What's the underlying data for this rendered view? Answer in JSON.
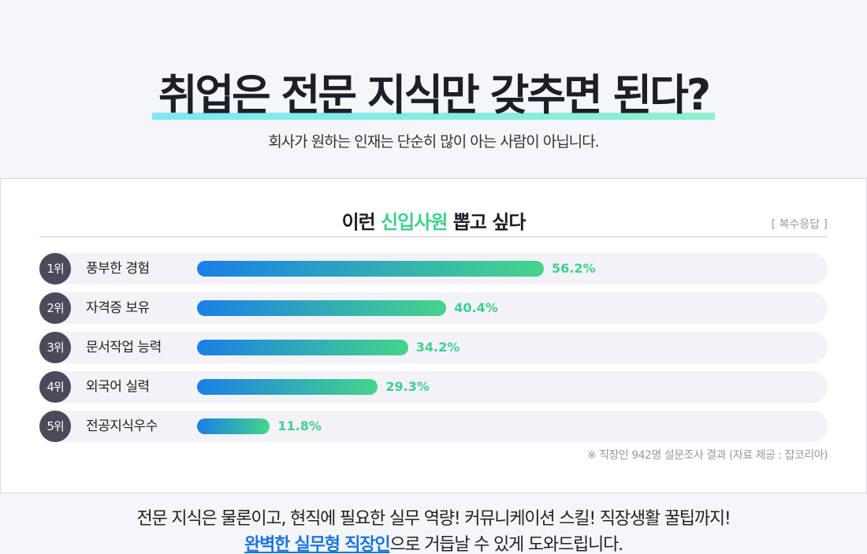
{
  "hero": {
    "title": "취업은 전문 지식만 갖추면 된다?",
    "subtitle": "회사가 원하는 인재는 단순히 많이 아는 사람이 아닙니다."
  },
  "chart_header": {
    "title_pre": "이런 ",
    "title_accent": "신입사원",
    "title_post": " 뽑고 싶다",
    "note": "[ 복수응답 ]"
  },
  "chart_data": {
    "type": "bar",
    "orientation": "horizontal",
    "title": "이런 신입사원 뽑고 싶다",
    "ranks": [
      "1위",
      "2위",
      "3위",
      "4위",
      "5위"
    ],
    "categories": [
      "풍부한 경험",
      "자격증 보유",
      "문서작업 능력",
      "외국어 실력",
      "전공지식우수"
    ],
    "values": [
      56.2,
      40.4,
      34.2,
      29.3,
      11.8
    ],
    "value_labels": [
      "56.2%",
      "40.4%",
      "34.2%",
      "29.3%",
      "11.8%"
    ],
    "xlim": [
      0,
      100
    ],
    "unit": "%",
    "colors": {
      "bar_start": "#1a7fe6",
      "bar_end": "#45d58a",
      "value_text": "#3fcf8f",
      "rank_badge": "#4a4a5a"
    }
  },
  "source": "※ 직장인 942명 설문조사 결과 (자료 제공 : 잡코리아)",
  "footer": {
    "line1": "전문 지식은 물론이고, 현직에 필요한 실무 역량! 커뮤니케이션 스킬! 직장생활 꿀팁까지!",
    "line2_highlight": "완벽한 실무형 직장인",
    "line2_rest": "으로 거듭날 수 있게 도와드립니다."
  }
}
